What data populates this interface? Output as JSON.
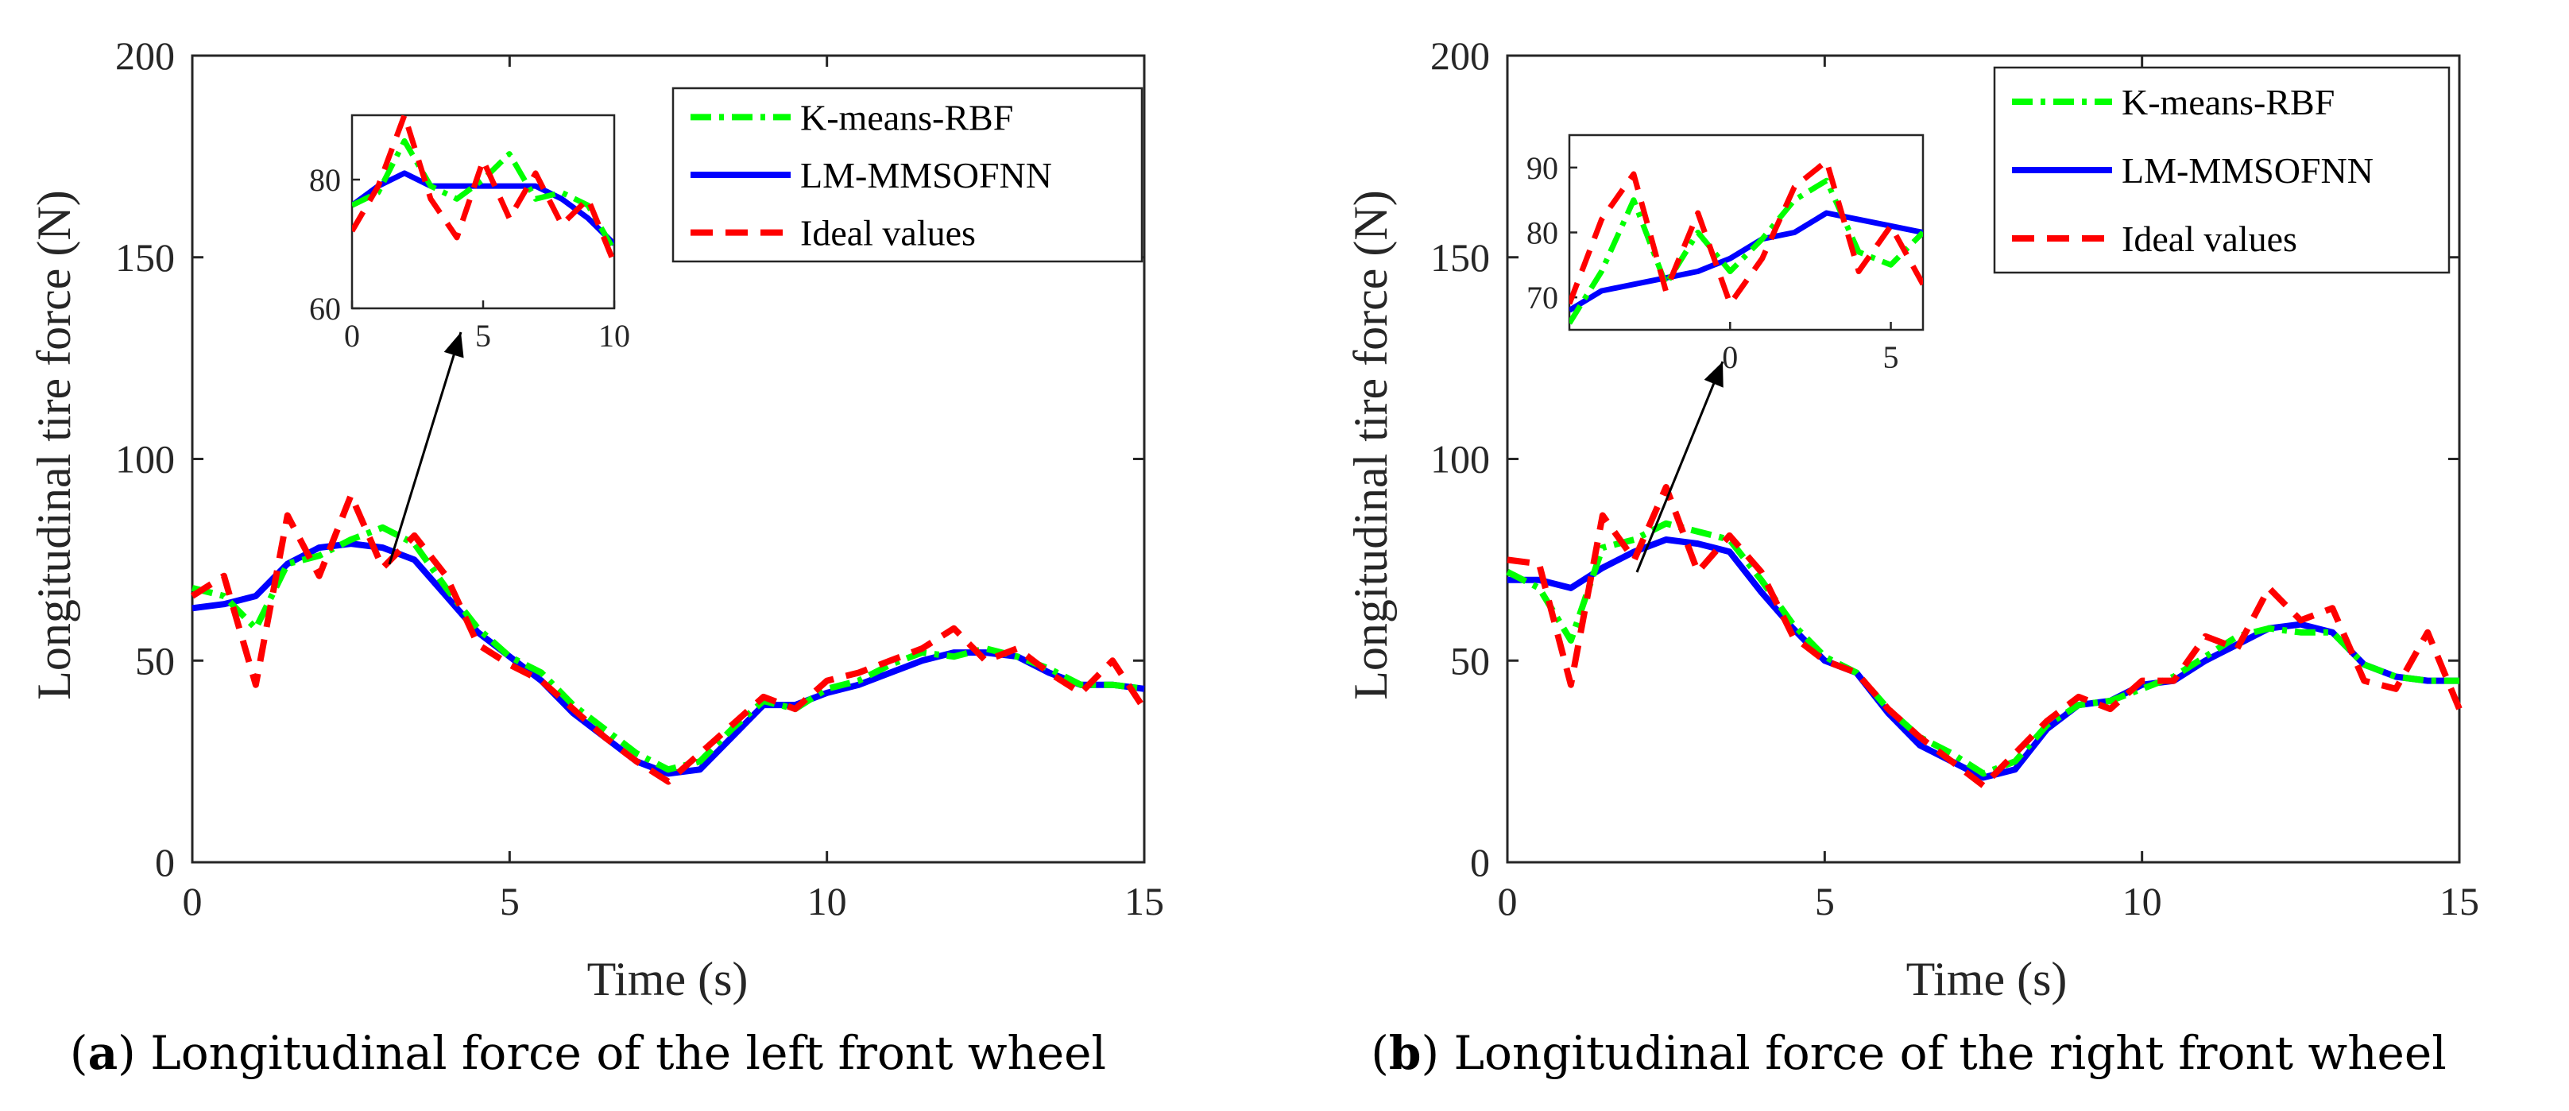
{
  "colors": {
    "kmeans": "#00ff00",
    "lm": "#0000ff",
    "ideal": "#ff0000",
    "axis": "#262626"
  },
  "legend": [
    "K-means-RBF",
    "LM-MMSOFNN",
    "Ideal values"
  ],
  "panels": [
    {
      "caption_letter": "a",
      "caption_text": "Longitudinal force of the left front wheel"
    },
    {
      "caption_letter": "b",
      "caption_text": "Longitudinal force of the right front wheel"
    }
  ],
  "chart_data": [
    {
      "type": "line",
      "title": "",
      "xlabel": "Time (s)",
      "ylabel": "Longitudinal tire force (N)",
      "xlim": [
        0,
        15
      ],
      "ylim": [
        0,
        200
      ],
      "xticks": [
        "0",
        "5",
        "10",
        "15"
      ],
      "yticks": [
        "0",
        "50",
        "100",
        "150",
        "200"
      ],
      "x": [
        0,
        0.5,
        1,
        1.5,
        2,
        2.5,
        3,
        3.5,
        4,
        4.5,
        5,
        5.5,
        6,
        6.5,
        7,
        7.5,
        8,
        8.5,
        9,
        9.5,
        10,
        10.5,
        11,
        11.5,
        12,
        12.5,
        13,
        13.5,
        14,
        14.5,
        15
      ],
      "series": [
        {
          "name": "K-means-RBF",
          "values": [
            68,
            66,
            58,
            74,
            76,
            80,
            83,
            79,
            68,
            58,
            51,
            47,
            39,
            33,
            27,
            23,
            25,
            33,
            40,
            38,
            43,
            45,
            49,
            52,
            51,
            53,
            51,
            48,
            44,
            44,
            43
          ]
        },
        {
          "name": "LM-MMSOFNN",
          "values": [
            63,
            64,
            66,
            74,
            78,
            79,
            78,
            75,
            66,
            57,
            51,
            45,
            37,
            31,
            25,
            22,
            23,
            31,
            39,
            39,
            42,
            44,
            47,
            50,
            52,
            52,
            51,
            47,
            44,
            44,
            43
          ]
        },
        {
          "name": "Ideal values",
          "values": [
            66,
            71,
            44,
            86,
            71,
            91,
            73,
            81,
            71,
            54,
            49,
            45,
            38,
            31,
            25,
            20,
            27,
            34,
            41,
            38,
            45,
            47,
            50,
            53,
            58,
            50,
            53,
            47,
            42,
            50,
            38
          ]
        }
      ],
      "inset": {
        "xlim": [
          0,
          10
        ],
        "ylim": [
          60,
          90
        ],
        "xticks": [
          "0",
          "5",
          "10"
        ],
        "yticks": [
          "60",
          "80"
        ],
        "x": [
          0,
          1,
          2,
          3,
          4,
          5,
          6,
          7,
          8,
          9,
          10
        ],
        "series": [
          {
            "name": "K-means-RBF",
            "values": [
              76,
              78,
              86,
              79,
              77,
              80,
              84,
              77,
              78,
              76,
              69
            ]
          },
          {
            "name": "LM-MMSOFNN",
            "values": [
              76,
              79,
              81,
              79,
              79,
              79,
              79,
              79,
              77,
              74,
              70
            ]
          },
          {
            "name": "Ideal values",
            "values": [
              72,
              79,
              90,
              77,
              71,
              83,
              74,
              81,
              73,
              77,
              67
            ]
          }
        ]
      }
    },
    {
      "type": "line",
      "title": "",
      "xlabel": "Time (s)",
      "ylabel": "Longitudinal tire force (N)",
      "xlim": [
        0,
        15
      ],
      "ylim": [
        0,
        200
      ],
      "xticks": [
        "0",
        "5",
        "10",
        "15"
      ],
      "yticks": [
        "0",
        "50",
        "100",
        "150",
        "200"
      ],
      "x": [
        0,
        0.5,
        1,
        1.5,
        2,
        2.5,
        3,
        3.5,
        4,
        4.5,
        5,
        5.5,
        6,
        6.5,
        7,
        7.5,
        8,
        8.5,
        9,
        9.5,
        10,
        10.5,
        11,
        11.5,
        12,
        12.5,
        13,
        13.5,
        14,
        14.5,
        15
      ],
      "series": [
        {
          "name": "K-means-RBF",
          "values": [
            72,
            68,
            55,
            78,
            80,
            84,
            82,
            80,
            70,
            59,
            51,
            47,
            38,
            31,
            27,
            22,
            25,
            34,
            39,
            40,
            43,
            46,
            51,
            56,
            58,
            57,
            57,
            49,
            46,
            45,
            45
          ]
        },
        {
          "name": "LM-MMSOFNN",
          "values": [
            70,
            70,
            68,
            73,
            77,
            80,
            79,
            77,
            67,
            58,
            50,
            47,
            37,
            29,
            25,
            21,
            23,
            33,
            39,
            40,
            44,
            45,
            50,
            54,
            58,
            59,
            57,
            49,
            46,
            45,
            45
          ]
        },
        {
          "name": "Ideal values",
          "values": [
            75,
            74,
            44,
            86,
            75,
            93,
            72,
            81,
            72,
            56,
            50,
            47,
            38,
            31,
            25,
            19,
            27,
            35,
            41,
            38,
            45,
            45,
            56,
            53,
            68,
            60,
            63,
            45,
            43,
            57,
            38
          ]
        }
      ],
      "inset": {
        "xlim": [
          -5,
          6
        ],
        "ylim": [
          65,
          95
        ],
        "xticks": [
          "0",
          "5"
        ],
        "yticks": [
          "70",
          "80",
          "90"
        ],
        "x": [
          -5,
          -4,
          -3,
          -2,
          -1,
          0,
          1,
          2,
          3,
          4,
          5,
          6
        ],
        "series": [
          {
            "name": "K-means-RBF",
            "values": [
              66,
              74,
              85,
              72,
              80,
              74,
              79,
              85,
              88,
              77,
              75,
              80
            ]
          },
          {
            "name": "LM-MMSOFNN",
            "values": [
              68,
              71,
              72,
              73,
              74,
              76,
              79,
              80,
              83,
              82,
              81,
              80
            ]
          },
          {
            "name": "Ideal values",
            "values": [
              69,
              82,
              89,
              71,
              83,
              69,
              76,
              87,
              91,
              74,
              81,
              72
            ]
          }
        ]
      }
    }
  ]
}
